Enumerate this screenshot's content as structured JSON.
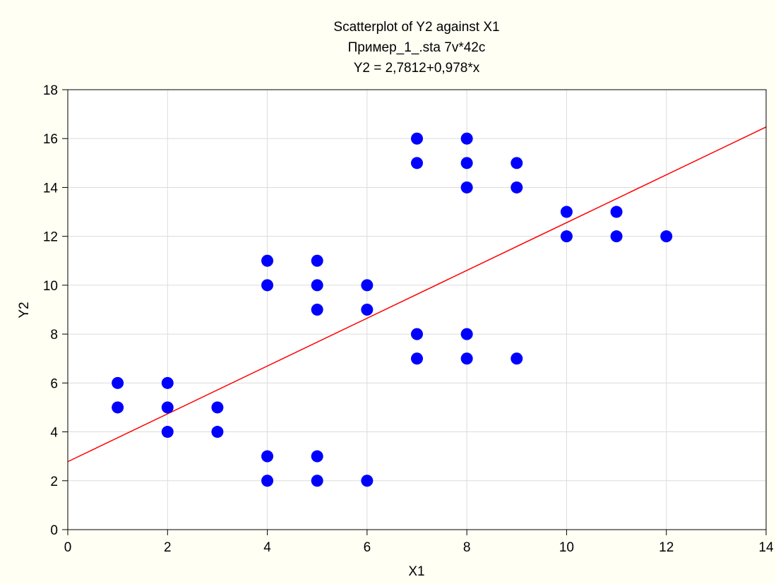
{
  "chart_data": {
    "type": "scatter",
    "title_lines": [
      "Scatterplot of Y2 against X1",
      "Пример_1_.sta 7v*42c",
      "Y2 = 2,7812+0,978*x"
    ],
    "xlabel": "X1",
    "ylabel": "Y2",
    "xlim": [
      0,
      14
    ],
    "ylim": [
      0,
      18
    ],
    "xticks": [
      0,
      2,
      4,
      6,
      8,
      10,
      12,
      14
    ],
    "yticks": [
      0,
      2,
      4,
      6,
      8,
      10,
      12,
      14,
      16,
      18
    ],
    "grid": true,
    "points": [
      {
        "x": 1,
        "y": 6
      },
      {
        "x": 1,
        "y": 5
      },
      {
        "x": 2,
        "y": 6
      },
      {
        "x": 2,
        "y": 5
      },
      {
        "x": 2,
        "y": 4
      },
      {
        "x": 3,
        "y": 5
      },
      {
        "x": 3,
        "y": 4
      },
      {
        "x": 4,
        "y": 11
      },
      {
        "x": 4,
        "y": 10
      },
      {
        "x": 4,
        "y": 3
      },
      {
        "x": 4,
        "y": 2
      },
      {
        "x": 5,
        "y": 11
      },
      {
        "x": 5,
        "y": 10
      },
      {
        "x": 5,
        "y": 9
      },
      {
        "x": 5,
        "y": 3
      },
      {
        "x": 5,
        "y": 2
      },
      {
        "x": 6,
        "y": 10
      },
      {
        "x": 6,
        "y": 9
      },
      {
        "x": 6,
        "y": 2
      },
      {
        "x": 7,
        "y": 16
      },
      {
        "x": 7,
        "y": 15
      },
      {
        "x": 7,
        "y": 8
      },
      {
        "x": 7,
        "y": 7
      },
      {
        "x": 8,
        "y": 16
      },
      {
        "x": 8,
        "y": 15
      },
      {
        "x": 8,
        "y": 14
      },
      {
        "x": 8,
        "y": 8
      },
      {
        "x": 8,
        "y": 7
      },
      {
        "x": 9,
        "y": 15
      },
      {
        "x": 9,
        "y": 14
      },
      {
        "x": 9,
        "y": 7
      },
      {
        "x": 10,
        "y": 13
      },
      {
        "x": 10,
        "y": 12
      },
      {
        "x": 11,
        "y": 13
      },
      {
        "x": 11,
        "y": 12
      },
      {
        "x": 12,
        "y": 12
      }
    ],
    "fit_line": {
      "intercept": 2.7812,
      "slope": 0.978
    },
    "colors": {
      "background": "#FFFFF4",
      "plot_area": "#FFFFFF",
      "point": "#0000FF",
      "fit_line": "#FF0000",
      "grid": "#DCDCDC",
      "axis": "#000000"
    }
  }
}
